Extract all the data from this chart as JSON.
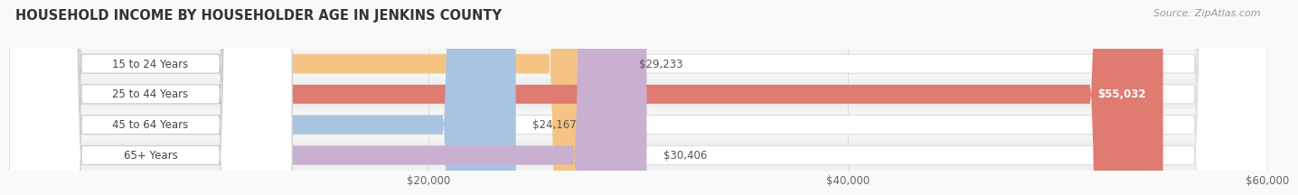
{
  "title": "HOUSEHOLD INCOME BY HOUSEHOLDER AGE IN JENKINS COUNTY",
  "source": "Source: ZipAtlas.com",
  "categories": [
    "15 to 24 Years",
    "25 to 44 Years",
    "45 to 64 Years",
    "65+ Years"
  ],
  "values": [
    29233,
    55032,
    24167,
    30406
  ],
  "bar_colors": [
    "#f5c484",
    "#e07b72",
    "#a8c4e0",
    "#c9afd0"
  ],
  "label_colors": [
    "#555555",
    "#ffffff",
    "#555555",
    "#555555"
  ],
  "value_labels": [
    "$29,233",
    "$55,032",
    "$24,167",
    "$30,406"
  ],
  "row_colors": [
    "#f5f5f5",
    "#f0f0f0",
    "#f5f5f5",
    "#f0f0f0"
  ],
  "xlim_max": 60000,
  "xticks": [
    20000,
    40000,
    60000
  ],
  "xticklabels": [
    "$20,000",
    "$40,000",
    "$60,000"
  ],
  "title_fontsize": 10.5,
  "source_fontsize": 8,
  "label_fontsize": 8.5,
  "value_fontsize": 8.5,
  "tick_fontsize": 8.5,
  "bar_height": 0.62,
  "background_color": "#f9f9f9",
  "pill_bg_color": "#ffffff",
  "pill_border_color": "#dddddd",
  "label_box_color": "#ffffff",
  "label_box_border": "#cccccc",
  "grid_color": "#dddddd"
}
